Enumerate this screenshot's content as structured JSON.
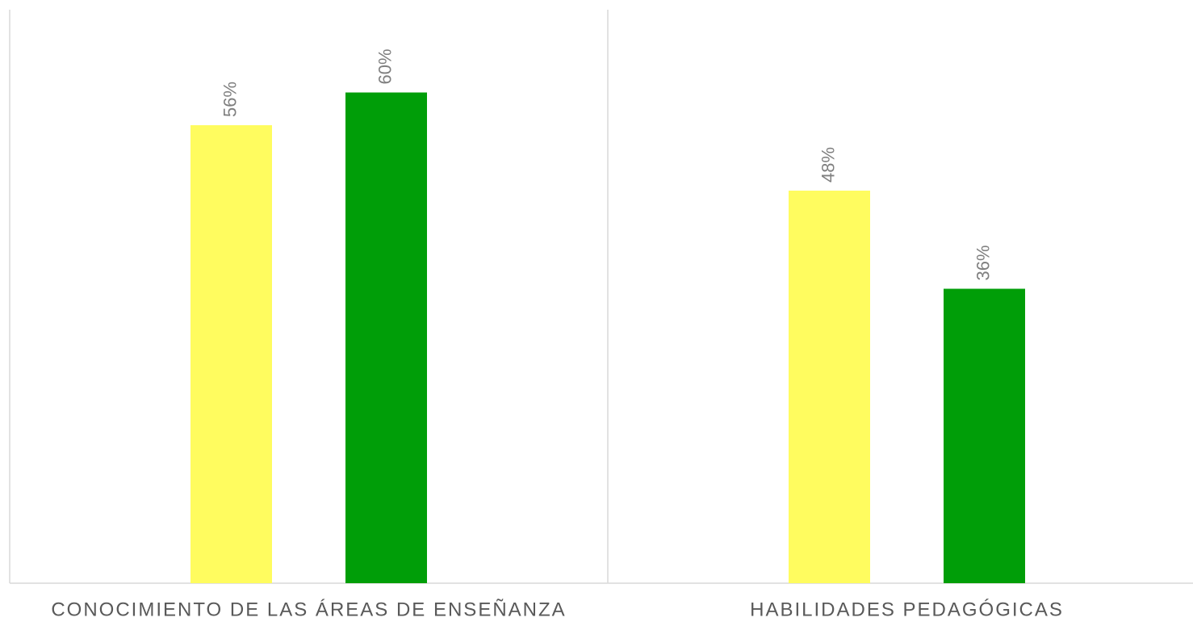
{
  "chart_data": {
    "type": "bar",
    "categories": [
      "CONOCIMIENTO DE LAS ÁREAS DE ENSEÑANZA",
      "HABILIDADES PEDAGÓGICAS"
    ],
    "series": [
      {
        "color": "#fffc5f",
        "values": [
          56,
          48
        ],
        "value_labels": [
          "56%",
          "48%"
        ]
      },
      {
        "color": "#009e08",
        "values": [
          60,
          36
        ],
        "value_labels": [
          "60%",
          "36%"
        ]
      }
    ]
  }
}
